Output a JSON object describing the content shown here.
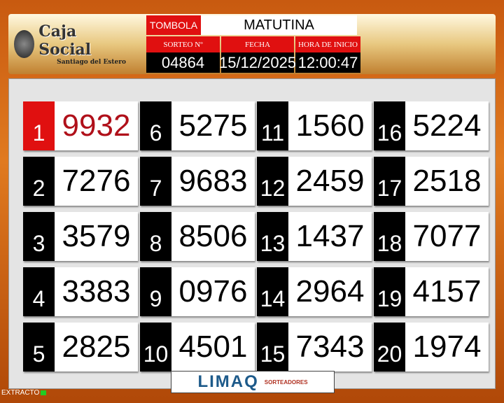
{
  "header": {
    "logo_title": "Caja Social",
    "logo_subtitle": "Santiago del Estero",
    "game_label": "TOMBOLA",
    "draw_name": "MATUTINA",
    "sorteo_label": "SORTEO  Nº",
    "sorteo_value": "04864",
    "fecha_label": "FECHA",
    "fecha_value": "15/12/2025",
    "hora_label": "HORA DE INICIO",
    "hora_value": "12:00:47"
  },
  "results": [
    {
      "pos": "1",
      "num": "9932"
    },
    {
      "pos": "2",
      "num": "7276"
    },
    {
      "pos": "3",
      "num": "3579"
    },
    {
      "pos": "4",
      "num": "3383"
    },
    {
      "pos": "5",
      "num": "2825"
    },
    {
      "pos": "6",
      "num": "5275"
    },
    {
      "pos": "7",
      "num": "9683"
    },
    {
      "pos": "8",
      "num": "8506"
    },
    {
      "pos": "9",
      "num": "0976"
    },
    {
      "pos": "10",
      "num": "4501"
    },
    {
      "pos": "11",
      "num": "1560"
    },
    {
      "pos": "12",
      "num": "2459"
    },
    {
      "pos": "13",
      "num": "1437"
    },
    {
      "pos": "14",
      "num": "2964"
    },
    {
      "pos": "15",
      "num": "7343"
    },
    {
      "pos": "16",
      "num": "5224"
    },
    {
      "pos": "17",
      "num": "2518"
    },
    {
      "pos": "18",
      "num": "7077"
    },
    {
      "pos": "19",
      "num": "4157"
    },
    {
      "pos": "20",
      "num": "1974"
    }
  ],
  "footer": {
    "brand": "LIMAQ",
    "brand_sub": "SORTEADORES",
    "extracto": "EXTRACTO"
  },
  "colors": {
    "accent_red": "#e01010",
    "first_number": "#b0101a",
    "brand_blue": "#1d5a8a"
  }
}
